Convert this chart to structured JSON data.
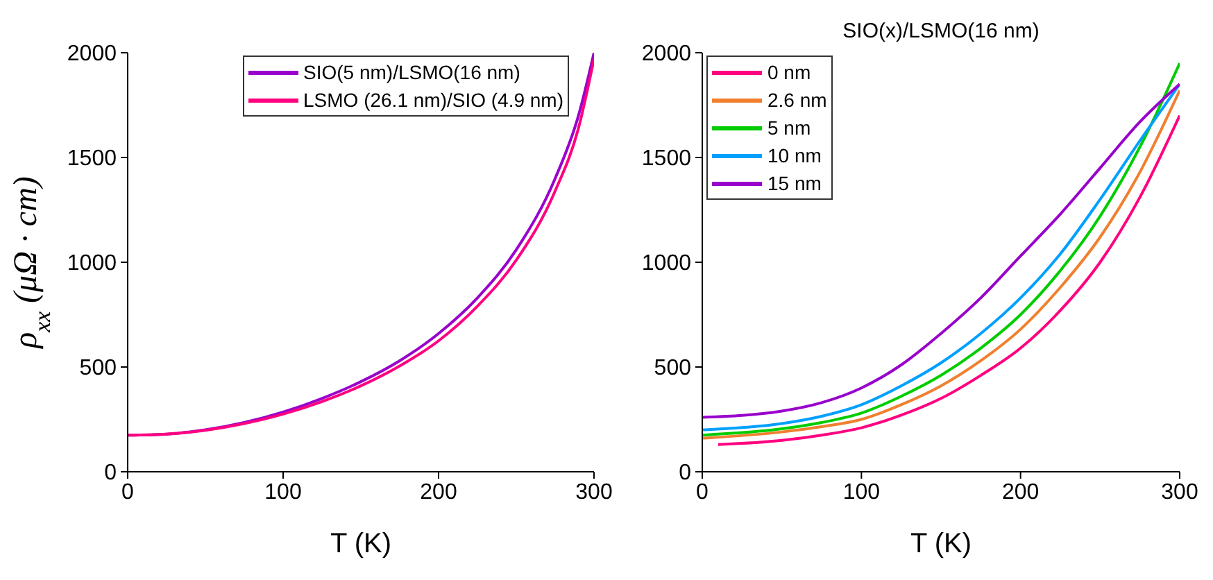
{
  "chart_data": [
    {
      "type": "line",
      "xlabel": "T (K)",
      "ylabel": "ρ$_{xx}$ (μΩ · cm)",
      "xlim": [
        0,
        300
      ],
      "xticks": [
        0,
        100,
        200,
        300
      ],
      "ylim": [
        0,
        2000
      ],
      "yticks": [
        0,
        500,
        1000,
        1500,
        2000
      ],
      "legend": "top right",
      "grid": false,
      "series": [
        {
          "name": "SIO(5 nm)/LSMO(16 nm)",
          "color": "#9900cc",
          "x": [
            0,
            25,
            50,
            75,
            100,
            125,
            150,
            175,
            200,
            225,
            250,
            275,
            290,
            300
          ],
          "values": [
            175,
            180,
            200,
            235,
            285,
            350,
            430,
            530,
            660,
            830,
            1060,
            1400,
            1700,
            2000
          ]
        },
        {
          "name": "LSMO (26.1 nm)/SIO (4.9 nm)",
          "color": "#ff0080",
          "x": [
            0,
            25,
            50,
            75,
            100,
            125,
            150,
            175,
            200,
            225,
            250,
            275,
            290,
            300
          ],
          "values": [
            175,
            180,
            198,
            230,
            275,
            335,
            410,
            505,
            625,
            790,
            1010,
            1340,
            1640,
            1970
          ]
        }
      ]
    },
    {
      "type": "line",
      "legend_title": "SIO(x)/LSMO(16 nm)",
      "xlabel": "T (K)",
      "xlim": [
        0,
        300
      ],
      "xticks": [
        0,
        100,
        200,
        300
      ],
      "ylim": [
        0,
        2000
      ],
      "yticks": [
        0,
        500,
        1000,
        1500,
        2000
      ],
      "legend": "top left",
      "grid": false,
      "series": [
        {
          "name": "0 nm",
          "color": "#ff0080",
          "x": [
            10,
            50,
            75,
            100,
            125,
            150,
            175,
            200,
            225,
            250,
            275,
            300
          ],
          "values": [
            130,
            150,
            175,
            210,
            270,
            350,
            460,
            590,
            770,
            1000,
            1310,
            1700
          ]
        },
        {
          "name": "2.6 nm",
          "color": "#f08030",
          "x": [
            0,
            50,
            75,
            100,
            125,
            150,
            175,
            200,
            225,
            250,
            275,
            300
          ],
          "values": [
            160,
            190,
            215,
            250,
            320,
            410,
            530,
            680,
            880,
            1120,
            1430,
            1820
          ]
        },
        {
          "name": "5 nm",
          "color": "#00cc00",
          "x": [
            0,
            50,
            75,
            100,
            125,
            150,
            175,
            200,
            225,
            250,
            275,
            300
          ],
          "values": [
            175,
            205,
            235,
            280,
            360,
            460,
            590,
            750,
            960,
            1220,
            1550,
            1950
          ]
        },
        {
          "name": "10 nm",
          "color": "#00a0ff",
          "x": [
            0,
            50,
            75,
            100,
            125,
            150,
            175,
            200,
            225,
            250,
            275,
            300
          ],
          "values": [
            200,
            230,
            265,
            320,
            410,
            520,
            660,
            830,
            1040,
            1300,
            1580,
            1850
          ]
        },
        {
          "name": "15 nm",
          "color": "#9900cc",
          "x": [
            0,
            50,
            75,
            100,
            125,
            150,
            175,
            200,
            225,
            250,
            275,
            300
          ],
          "values": [
            260,
            290,
            330,
            400,
            510,
            660,
            830,
            1030,
            1230,
            1450,
            1670,
            1850
          ]
        }
      ]
    }
  ]
}
